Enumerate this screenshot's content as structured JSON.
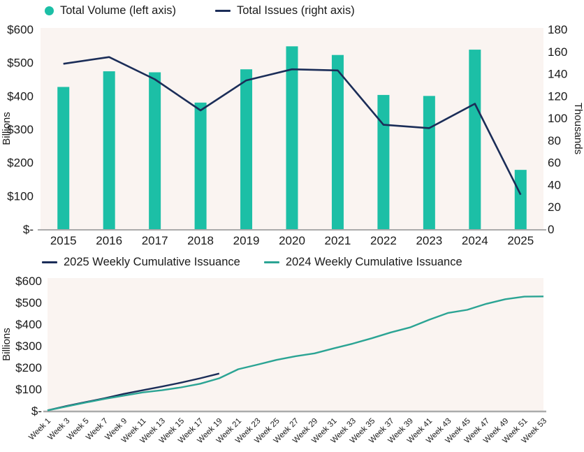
{
  "colors": {
    "teal": "#1CBFA6",
    "teal_line": "#2BA494",
    "navy": "#1B2D58",
    "plot_bg": "#FAF4F1",
    "axis_line": "#ABABAB",
    "text": "#1A1A1A"
  },
  "chart_data": [
    {
      "type": "bar",
      "subtype": "bar+line combo, dual axis",
      "title": "",
      "categories": [
        "2015",
        "2016",
        "2017",
        "2018",
        "2019",
        "2020",
        "2021",
        "2022",
        "2023",
        "2024",
        "2025"
      ],
      "series": [
        {
          "name": "Total Volume (left axis)",
          "type": "bar",
          "axis": "left",
          "unit": "$ Billions",
          "color": "teal",
          "values": [
            427,
            474,
            471,
            380,
            480,
            549,
            523,
            403,
            400,
            539,
            178
          ]
        },
        {
          "name": "Total Issues (right axis)",
          "type": "line",
          "axis": "right",
          "unit": "Thousands",
          "color": "navy",
          "values": [
            149,
            155,
            135,
            107,
            134,
            144,
            143,
            94,
            91,
            113,
            31
          ]
        }
      ],
      "left_axis": {
        "title": "Billions",
        "min": 0,
        "max": 600,
        "ticks": [
          "$-",
          "$100",
          "$200",
          "$300",
          "$400",
          "$500",
          "$600"
        ]
      },
      "right_axis": {
        "title": "Thousands",
        "min": 0,
        "max": 180,
        "ticks": [
          "0",
          "20",
          "40",
          "60",
          "80",
          "100",
          "120",
          "140",
          "160",
          "180"
        ]
      },
      "legend_position": "top",
      "grid": false
    },
    {
      "type": "line",
      "title": "",
      "categories": [
        "Week 1",
        "Week 3",
        "Week 5",
        "Week 7",
        "Week 9",
        "Week 11",
        "Week 13",
        "Week 15",
        "Week 17",
        "Week 19",
        "Week 21",
        "Week 23",
        "Week 25",
        "Week 27",
        "Week 29",
        "Week 31",
        "Week 33",
        "Week 35",
        "Week 37",
        "Week 39",
        "Week 41",
        "Week 43",
        "Week 45",
        "Week 47",
        "Week 49",
        "Week 51",
        "Week 53"
      ],
      "series": [
        {
          "name": "2025 Weekly Cumulative Issuance",
          "unit": "$ Billions",
          "color": "navy",
          "values": [
            2,
            22,
            40,
            58,
            78,
            95,
            112,
            130,
            150,
            172
          ]
        },
        {
          "name": "2024 Weekly Cumulative Issuance",
          "unit": "$ Billions",
          "color": "teal_line",
          "values": [
            2,
            20,
            38,
            55,
            70,
            85,
            95,
            108,
            125,
            150,
            192,
            213,
            235,
            252,
            265,
            288,
            310,
            335,
            362,
            385,
            420,
            452,
            466,
            494,
            515,
            527,
            528
          ]
        }
      ],
      "left_axis": {
        "title": "Billions",
        "min": 0,
        "max": 600,
        "ticks": [
          "$-",
          "$100",
          "$200",
          "$300",
          "$400",
          "$500",
          "$600"
        ]
      },
      "legend_position": "top",
      "grid": false
    }
  ]
}
